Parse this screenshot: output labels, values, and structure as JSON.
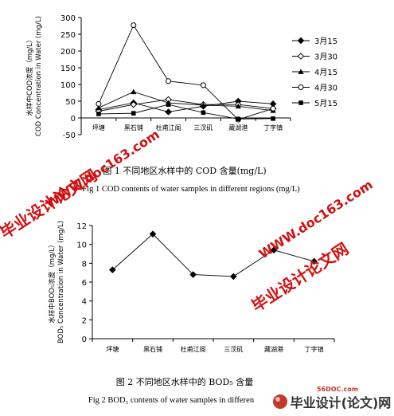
{
  "chart_data": [
    {
      "type": "line",
      "ylabel": [
        "水样中COD浓度（mg/L）",
        "COD Concentration in Water (mg/L)"
      ],
      "categories": [
        "坪塘",
        "黑石铺",
        "杜甫江阁",
        "三汊矶",
        "藏湖港",
        "丁字镇"
      ],
      "ylim": [
        -50,
        300
      ],
      "yticks": [
        -50,
        0,
        50,
        100,
        150,
        200,
        250,
        300
      ],
      "legend_position": "right",
      "series": [
        {
          "name": "3月15",
          "marker": "diamond-filled",
          "values": [
            25,
            45,
            18,
            35,
            50,
            42
          ]
        },
        {
          "name": "3月30",
          "marker": "diamond-open",
          "values": [
            20,
            40,
            55,
            40,
            40,
            28
          ]
        },
        {
          "name": "4月15",
          "marker": "triangle-filled",
          "values": [
            30,
            78,
            45,
            38,
            35,
            22
          ]
        },
        {
          "name": "4月30",
          "marker": "circle-open",
          "values": [
            42,
            277,
            110,
            98,
            -5,
            28
          ]
        },
        {
          "name": "5月15",
          "marker": "square-filled",
          "values": [
            12,
            14,
            40,
            16,
            -3,
            -2
          ]
        }
      ],
      "caption_cn": "图 1  不同地区水样中的 COD 含量(mg/L)",
      "caption_en": "Fig 1 COD contents of water samples in different regions (mg/L)"
    },
    {
      "type": "line",
      "ylabel": [
        "水样中BOD₅浓度（mg/L）",
        "BOD₅ Concentration in Water (mg/L)"
      ],
      "categories": [
        "坪塘",
        "黑石铺",
        "杜甫江阁",
        "三汊矶",
        "藏湖港",
        "丁字镇"
      ],
      "ylim": [
        0,
        12
      ],
      "yticks": [
        0,
        2,
        4,
        6,
        8,
        10,
        12
      ],
      "series": [
        {
          "name": "BOD5",
          "marker": "diamond-filled",
          "values": [
            7.3,
            11.1,
            6.8,
            6.6,
            9.4,
            8.2
          ]
        }
      ],
      "caption_cn": "图 2 不同地区水样中的 BOD₅ 含量",
      "caption_en": "Fig 2 BOD₅ contents of water samples in differen"
    }
  ],
  "watermarks": {
    "url": "WWW.doc163.com",
    "text": "毕业设计论文网",
    "site_url": "56DOC.com",
    "site_brand": "毕业设计(论文)网"
  },
  "colors": {
    "line": "#000000",
    "watermark": "#d01010"
  }
}
